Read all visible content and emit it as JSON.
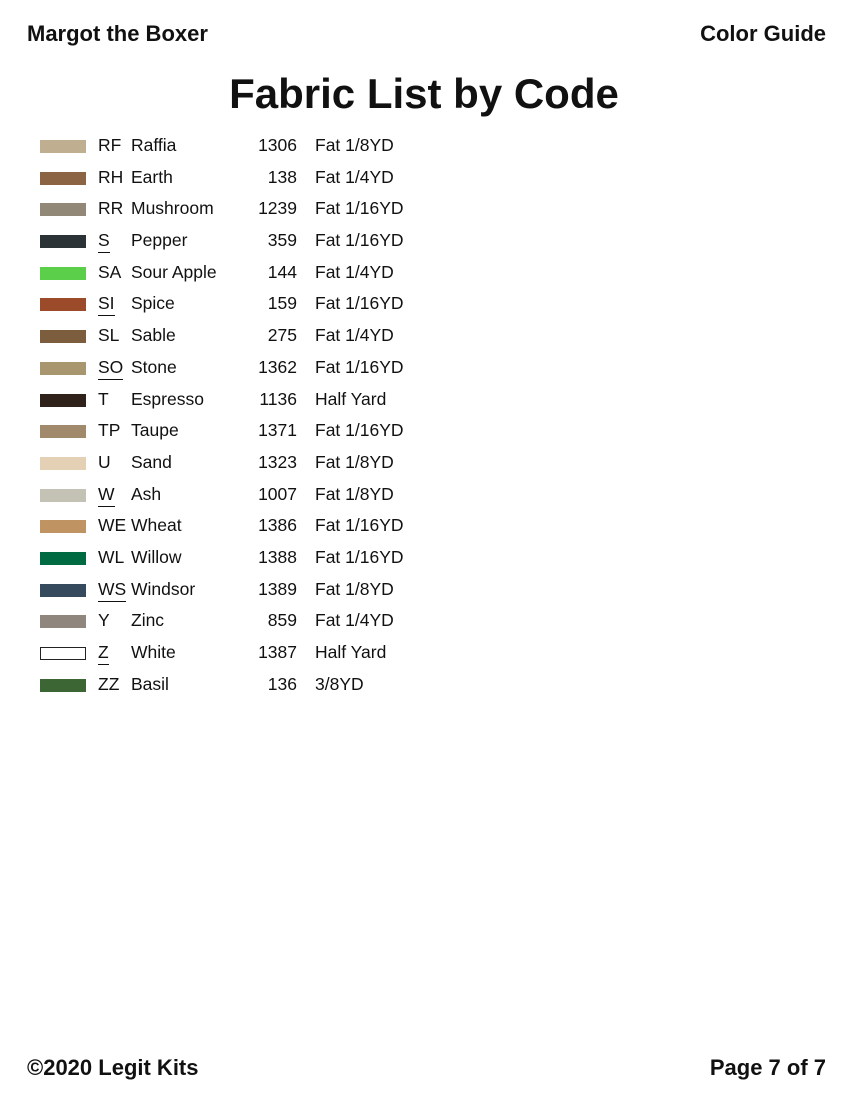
{
  "header": {
    "left": "Margot the Boxer",
    "right": "Color Guide"
  },
  "title": "Fabric List by Code",
  "fabrics": [
    {
      "code": "RF",
      "name": "Raffia",
      "number": "1306",
      "amount": "Fat 1/8YD",
      "color": "#bfae90",
      "underlined": false
    },
    {
      "code": "RH",
      "name": "Earth",
      "number": "138",
      "amount": "Fat 1/4YD",
      "color": "#8b6444",
      "underlined": false
    },
    {
      "code": "RR",
      "name": "Mushroom",
      "number": "1239",
      "amount": "Fat 1/16YD",
      "color": "#928877",
      "underlined": false
    },
    {
      "code": "S",
      "name": "Pepper",
      "number": "359",
      "amount": "Fat 1/16YD",
      "color": "#2c3336",
      "underlined": true
    },
    {
      "code": "SA",
      "name": "Sour Apple",
      "number": "144",
      "amount": "Fat 1/4YD",
      "color": "#5ccf4a",
      "underlined": false
    },
    {
      "code": "SI",
      "name": "Spice",
      "number": "159",
      "amount": "Fat 1/16YD",
      "color": "#9b4a2a",
      "underlined": true
    },
    {
      "code": "SL",
      "name": "Sable",
      "number": "275",
      "amount": "Fat 1/4YD",
      "color": "#7c5d3e",
      "underlined": false
    },
    {
      "code": "SO",
      "name": "Stone",
      "number": "1362",
      "amount": "Fat 1/16YD",
      "color": "#a8966f",
      "underlined": true
    },
    {
      "code": "T",
      "name": "Espresso",
      "number": "1136",
      "amount": "Half Yard",
      "color": "#2e221b",
      "underlined": false
    },
    {
      "code": "TP",
      "name": "Taupe",
      "number": "1371",
      "amount": "Fat 1/16YD",
      "color": "#a08a6b",
      "underlined": false
    },
    {
      "code": "U",
      "name": "Sand",
      "number": "1323",
      "amount": "Fat 1/8YD",
      "color": "#e4d1b5",
      "underlined": false
    },
    {
      "code": "W",
      "name": "Ash",
      "number": "1007",
      "amount": "Fat 1/8YD",
      "color": "#c3c2b5",
      "underlined": true
    },
    {
      "code": "WE",
      "name": "Wheat",
      "number": "1386",
      "amount": "Fat 1/16YD",
      "color": "#bf9462",
      "underlined": false
    },
    {
      "code": "WL",
      "name": "Willow",
      "number": "1388",
      "amount": "Fat 1/16YD",
      "color": "#006a42",
      "underlined": false
    },
    {
      "code": "WS",
      "name": "Windsor",
      "number": "1389",
      "amount": "Fat 1/8YD",
      "color": "#354a5c",
      "underlined": true
    },
    {
      "code": "Y",
      "name": "Zinc",
      "number": "859",
      "amount": "Fat 1/4YD",
      "color": "#8f877d",
      "underlined": false
    },
    {
      "code": "Z",
      "name": "White",
      "number": "1387",
      "amount": "Half Yard",
      "color": "#ffffff",
      "underlined": true
    },
    {
      "code": "ZZ",
      "name": "Basil",
      "number": "136",
      "amount": "3/8YD",
      "color": "#3c6633",
      "underlined": false
    }
  ],
  "footer": {
    "left": "©2020 Legit Kits",
    "right": "Page 7 of 7"
  }
}
